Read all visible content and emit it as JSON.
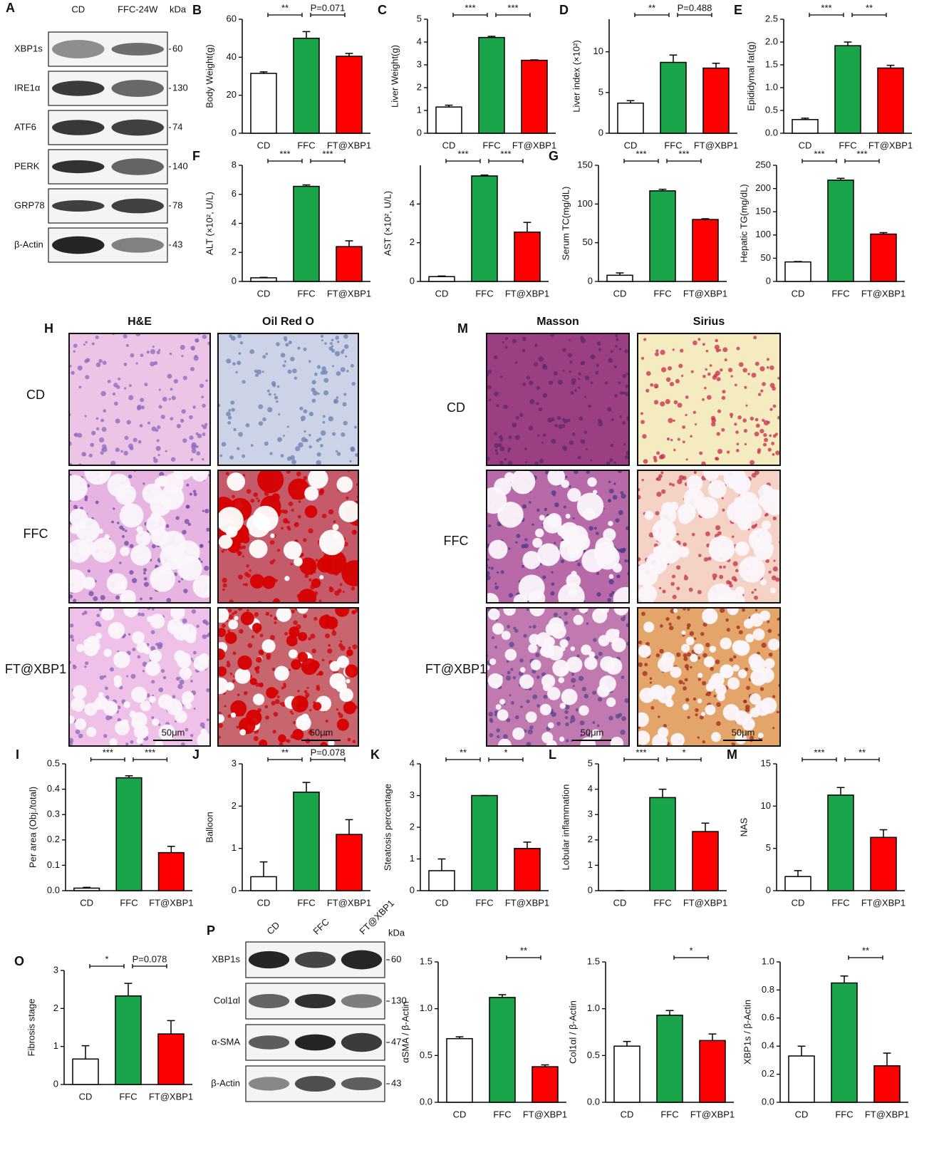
{
  "chart_data": [
    {
      "type": "bar",
      "panel": "B",
      "ylabel": "Body Weight(g)",
      "categories": [
        "CD",
        "FFC",
        "FT@XBP1"
      ],
      "values": [
        31.5,
        50,
        40.5
      ],
      "errors": [
        0.8,
        3.5,
        1.5
      ],
      "colors": [
        "#ffffff",
        "#1aa54b",
        "#ff0000"
      ],
      "ylim": [
        0,
        60
      ],
      "yticks": [
        0,
        20,
        40,
        60
      ],
      "significance": [
        "**",
        "P=0.071"
      ]
    },
    {
      "type": "bar",
      "panel": "C",
      "ylabel": "Liver Weight(g)",
      "categories": [
        "CD",
        "FFC",
        "FT@XBP1"
      ],
      "values": [
        1.15,
        4.2,
        3.2
      ],
      "errors": [
        0.08,
        0.05,
        0.02
      ],
      "colors": [
        "#ffffff",
        "#1aa54b",
        "#ff0000"
      ],
      "ylim": [
        0,
        5
      ],
      "yticks": [
        0,
        1,
        2,
        3,
        4,
        5
      ],
      "significance": [
        "***",
        "***"
      ]
    },
    {
      "type": "bar",
      "panel": "D",
      "ylabel": "Liver index (×10²)",
      "categories": [
        "CD",
        "FFC",
        "FT@XBP1"
      ],
      "values": [
        3.7,
        8.7,
        8.0
      ],
      "errors": [
        0.3,
        0.9,
        0.6
      ],
      "colors": [
        "#ffffff",
        "#1aa54b",
        "#ff0000"
      ],
      "ylim": [
        0,
        14
      ],
      "yticks": [
        0,
        5,
        10
      ],
      "significance": [
        "**",
        "P=0.488"
      ]
    },
    {
      "type": "bar",
      "panel": "E",
      "ylabel": "Epididymal fat(g)",
      "categories": [
        "CD",
        "FFC",
        "FT@XBP1"
      ],
      "values": [
        0.3,
        1.92,
        1.43
      ],
      "errors": [
        0.03,
        0.08,
        0.06
      ],
      "colors": [
        "#ffffff",
        "#1aa54b",
        "#ff0000"
      ],
      "ylim": [
        0,
        2.5
      ],
      "yticks": [
        {
          "value": 0,
          "label": "0.0"
        },
        0.5,
        {
          "value": 1,
          "label": "1.0"
        },
        1.5,
        {
          "value": 2,
          "label": "2.0"
        },
        2.5
      ],
      "significance": [
        "***",
        "**"
      ]
    },
    {
      "type": "bar",
      "panel": "F",
      "ylabel": "ALT (×10², U/L)",
      "categories": [
        "CD",
        "FFC",
        "FT@XBP1"
      ],
      "values": [
        0.25,
        6.55,
        2.4
      ],
      "errors": [
        0.03,
        0.1,
        0.4
      ],
      "colors": [
        "#ffffff",
        "#1aa54b",
        "#ff0000"
      ],
      "ylim": [
        0,
        8
      ],
      "yticks": [
        0,
        2,
        4,
        6,
        8
      ],
      "significance": [
        "***",
        "***"
      ]
    },
    {
      "type": "bar",
      "ylabel": "AST (×10², U/L)",
      "categories": [
        "CD",
        "FFC",
        "FT@XBP1"
      ],
      "values": [
        0.25,
        5.45,
        2.55
      ],
      "errors": [
        0.03,
        0.05,
        0.5
      ],
      "colors": [
        "#ffffff",
        "#1aa54b",
        "#ff0000"
      ],
      "ylim": [
        0,
        6
      ],
      "yticks": [
        0,
        2,
        4
      ],
      "significance": [
        "***",
        "***"
      ]
    },
    {
      "type": "bar",
      "panel": "G",
      "ylabel": "Serum TC(mg/dL)",
      "categories": [
        "CD",
        "FFC",
        "FT@XBP1"
      ],
      "values": [
        8,
        117,
        80
      ],
      "errors": [
        3,
        2,
        1
      ],
      "colors": [
        "#ffffff",
        "#1aa54b",
        "#ff0000"
      ],
      "ylim": [
        0,
        150
      ],
      "yticks": [
        0,
        50,
        100,
        150
      ],
      "significance": [
        "***",
        "***"
      ]
    },
    {
      "type": "bar",
      "ylabel": "Hepatic TG(mg/dL)",
      "categories": [
        "CD",
        "FFC",
        "FT@XBP1"
      ],
      "values": [
        42,
        218,
        102
      ],
      "errors": [
        1,
        4,
        3
      ],
      "colors": [
        "#ffffff",
        "#1aa54b",
        "#ff0000"
      ],
      "ylim": [
        0,
        250
      ],
      "yticks": [
        0,
        50,
        100,
        150,
        200,
        250
      ],
      "significance": [
        "***",
        "***"
      ]
    },
    {
      "type": "bar",
      "panel": "I",
      "ylabel": "Per area (Obj./total)",
      "categories": [
        "CD",
        "FFC",
        "FT@XBP1"
      ],
      "values": [
        0.01,
        0.445,
        0.15
      ],
      "errors": [
        0.003,
        0.008,
        0.025
      ],
      "colors": [
        "#ffffff",
        "#1aa54b",
        "#ff0000"
      ],
      "ylim": [
        0,
        0.5
      ],
      "yticks": [
        {
          "value": 0,
          "label": "0.0"
        },
        0.1,
        0.2,
        0.3,
        0.4,
        0.5
      ],
      "significance": [
        "***",
        "***"
      ]
    },
    {
      "type": "bar",
      "panel": "J",
      "ylabel": "Balloon",
      "categories": [
        "CD",
        "FFC",
        "FT@XBP1"
      ],
      "values": [
        0.33,
        2.33,
        1.33
      ],
      "errors": [
        0.35,
        0.23,
        0.35
      ],
      "colors": [
        "#ffffff",
        "#1aa54b",
        "#ff0000"
      ],
      "ylim": [
        0,
        3
      ],
      "yticks": [
        0,
        1,
        2,
        3
      ],
      "significance": [
        "**",
        "P=0.078"
      ]
    },
    {
      "type": "bar",
      "panel": "K",
      "ylabel": "Steatosis percentage",
      "categories": [
        "CD",
        "FFC",
        "FT@XBP1"
      ],
      "values": [
        0.63,
        3,
        1.33
      ],
      "errors": [
        0.37,
        0,
        0.2
      ],
      "colors": [
        "#ffffff",
        "#1aa54b",
        "#ff0000"
      ],
      "ylim": [
        0,
        4
      ],
      "yticks": [
        0,
        1,
        2,
        3,
        4
      ],
      "significance": [
        "**",
        "*"
      ]
    },
    {
      "type": "bar",
      "panel": "L",
      "ylabel": "Lobular inflammation",
      "categories": [
        "CD",
        "FFC",
        "FT@XBP1"
      ],
      "values": [
        0,
        3.67,
        2.33
      ],
      "errors": [
        0,
        0.33,
        0.33
      ],
      "colors": [
        "#ffffff",
        "#1aa54b",
        "#ff0000"
      ],
      "ylim": [
        0,
        5
      ],
      "yticks": [
        0,
        1,
        2,
        3,
        4,
        5
      ],
      "significance": [
        "***",
        "*"
      ]
    },
    {
      "type": "bar",
      "panel": "M",
      "ylabel": "NAS",
      "categories": [
        "CD",
        "FFC",
        "FT@XBP1"
      ],
      "values": [
        1.67,
        11.3,
        6.3
      ],
      "errors": [
        0.7,
        0.9,
        0.9
      ],
      "colors": [
        "#ffffff",
        "#1aa54b",
        "#ff0000"
      ],
      "ylim": [
        0,
        15
      ],
      "yticks": [
        0,
        5,
        10,
        15
      ],
      "significance": [
        "***",
        "**"
      ]
    },
    {
      "type": "bar",
      "panel": "O",
      "ylabel": "Fibrosis stage",
      "categories": [
        "CD",
        "FFC",
        "FT@XBP1"
      ],
      "values": [
        0.67,
        2.33,
        1.33
      ],
      "errors": [
        0.35,
        0.33,
        0.35
      ],
      "colors": [
        "#ffffff",
        "#1aa54b",
        "#ff0000"
      ],
      "ylim": [
        0,
        3
      ],
      "yticks": [
        0,
        1,
        2,
        3
      ],
      "significance": [
        "*",
        "P=0.078"
      ]
    },
    {
      "type": "bar",
      "ylabel": "αSMA / β-Actin",
      "categories": [
        "CD",
        "FFC",
        "FT@XBP1"
      ],
      "values": [
        0.68,
        1.12,
        0.38
      ],
      "errors": [
        0.02,
        0.03,
        0.02
      ],
      "colors": [
        "#ffffff",
        "#1aa54b",
        "#ff0000"
      ],
      "ylim": [
        0,
        1.5
      ],
      "yticks": [
        {
          "value": 0,
          "label": "0.0"
        },
        0.5,
        {
          "value": 1,
          "label": "1.0"
        },
        1.5
      ],
      "significance": [
        null,
        "**"
      ]
    },
    {
      "type": "bar",
      "ylabel": "Col1αl / β-Actin",
      "categories": [
        "CD",
        "FFC",
        "FT@XBP1"
      ],
      "values": [
        0.6,
        0.93,
        0.66
      ],
      "errors": [
        0.05,
        0.05,
        0.07
      ],
      "colors": [
        "#ffffff",
        "#1aa54b",
        "#ff0000"
      ],
      "ylim": [
        0,
        1.5
      ],
      "yticks": [
        {
          "value": 0,
          "label": "0.0"
        },
        0.5,
        {
          "value": 1,
          "label": "1.0"
        },
        1.5
      ],
      "significance": [
        null,
        "*"
      ]
    },
    {
      "type": "bar",
      "ylabel": "XBP1s / β-Actin",
      "categories": [
        "CD",
        "FFC",
        "FT@XBP1"
      ],
      "values": [
        0.33,
        0.85,
        0.26
      ],
      "errors": [
        0.07,
        0.05,
        0.09
      ],
      "colors": [
        "#ffffff",
        "#1aa54b",
        "#ff0000"
      ],
      "ylim": [
        0,
        1
      ],
      "yticks": [
        {
          "value": 0,
          "label": "0.0"
        },
        0.2,
        0.4,
        0.6,
        0.8,
        {
          "value": 1,
          "label": "1.0"
        }
      ],
      "significance": [
        null,
        "**"
      ]
    }
  ],
  "blot_a": {
    "panel": "A",
    "lanes": [
      "CD",
      "FFC-24W"
    ],
    "unit": "kDa",
    "rows": [
      {
        "protein": "XBP1s",
        "kda": 60
      },
      {
        "protein": "IRE1α",
        "kda": 130
      },
      {
        "protein": "ATF6",
        "kda": 74
      },
      {
        "protein": "PERK",
        "kda": 140
      },
      {
        "protein": "GRP78",
        "kda": 78
      },
      {
        "protein": "β-Actin",
        "kda": 43
      }
    ]
  },
  "blot_p": {
    "panel": "P",
    "lanes": [
      "CD",
      "FFC",
      "FT@XBP1"
    ],
    "unit": "kDa",
    "rows": [
      {
        "protein": "XBP1s",
        "kda": 60
      },
      {
        "protein": "Col1αl",
        "kda": 130
      },
      {
        "protein": "α-SMA",
        "kda": 47
      },
      {
        "protein": "β-Actin",
        "kda": 43
      }
    ]
  },
  "histology": [
    {
      "panel": "H",
      "stains": [
        "H&E",
        "Oil Red O"
      ],
      "groups": [
        "CD",
        "FFC",
        "FT@XBP1"
      ],
      "scale": "50μm"
    },
    {
      "panel": "M",
      "stains": [
        "Masson",
        "Sirius"
      ],
      "groups": [
        "CD",
        "FFC",
        "FT@XBP1"
      ],
      "scale": "50μm"
    }
  ]
}
